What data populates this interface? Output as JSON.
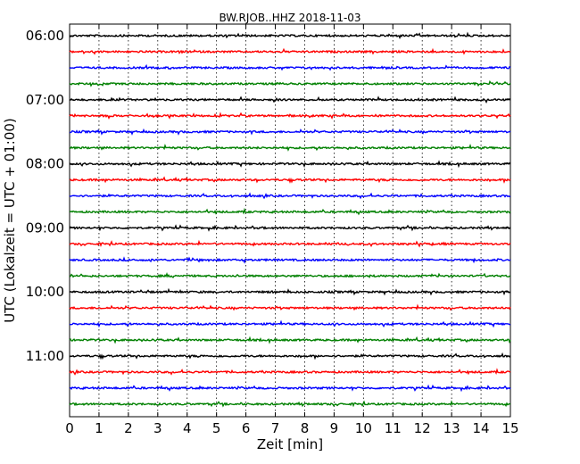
{
  "chart_data": {
    "type": "line",
    "title": "BW.RJOB..HHZ 2018-11-03",
    "xlabel": "Zeit  [min]",
    "ylabel": "UTC (Lokalzeit = UTC + 01:00)",
    "xlim": [
      0,
      15
    ],
    "x_ticks": [
      "0",
      "1",
      "2",
      "3",
      "4",
      "5",
      "6",
      "7",
      "8",
      "9",
      "10",
      "11",
      "12",
      "13",
      "14",
      "15"
    ],
    "y_tick_labels": [
      "06:00",
      "07:00",
      "08:00",
      "09:00",
      "10:00",
      "11:00"
    ],
    "trace_interval_min": 15,
    "grid": "vertical dotted",
    "series": [
      {
        "start": "06:00",
        "color": "#000000"
      },
      {
        "start": "06:15",
        "color": "#ff0000"
      },
      {
        "start": "06:30",
        "color": "#0000ff"
      },
      {
        "start": "06:45",
        "color": "#008000"
      },
      {
        "start": "07:00",
        "color": "#000000"
      },
      {
        "start": "07:15",
        "color": "#ff0000"
      },
      {
        "start": "07:30",
        "color": "#0000ff"
      },
      {
        "start": "07:45",
        "color": "#008000"
      },
      {
        "start": "08:00",
        "color": "#000000"
      },
      {
        "start": "08:15",
        "color": "#ff0000"
      },
      {
        "start": "08:30",
        "color": "#0000ff"
      },
      {
        "start": "08:45",
        "color": "#008000"
      },
      {
        "start": "09:00",
        "color": "#000000"
      },
      {
        "start": "09:15",
        "color": "#ff0000"
      },
      {
        "start": "09:30",
        "color": "#0000ff"
      },
      {
        "start": "09:45",
        "color": "#008000"
      },
      {
        "start": "10:00",
        "color": "#000000"
      },
      {
        "start": "10:15",
        "color": "#ff0000"
      },
      {
        "start": "10:30",
        "color": "#0000ff"
      },
      {
        "start": "10:45",
        "color": "#008000"
      },
      {
        "start": "11:00",
        "color": "#000000"
      },
      {
        "start": "11:15",
        "color": "#ff0000"
      },
      {
        "start": "11:30",
        "color": "#0000ff"
      },
      {
        "start": "11:45",
        "color": "#008000"
      }
    ]
  }
}
